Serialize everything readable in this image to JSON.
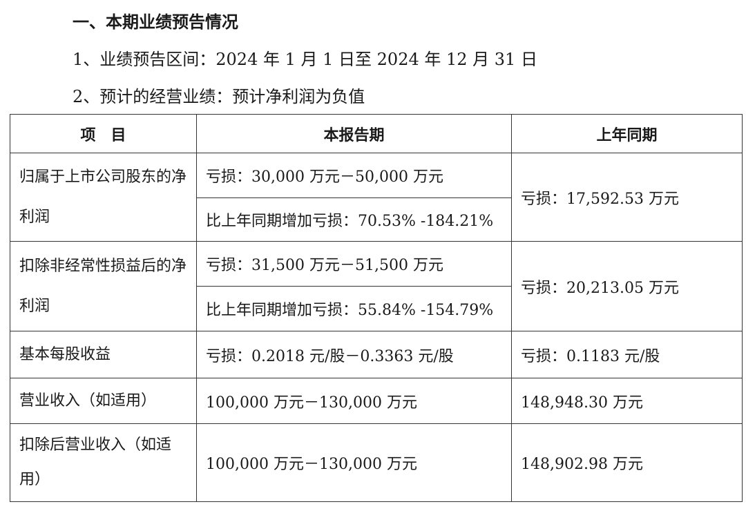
{
  "section_title": "一、本期业绩预告情况",
  "period_line": "1、业绩预告区间：2024 年 1 月 1 日至 2024 年 12 月 31 日",
  "forecast_line": "2、预计的经营业绩：预计净利润为负值",
  "table": {
    "headers": [
      "项　目",
      "本报告期",
      "上年同期"
    ],
    "rows": [
      {
        "item": "归属于上市公司股东的净利润",
        "current": "亏损：30,000 万元－50,000 万元",
        "current_change": "比上年同期增加亏损：70.53% -184.21%",
        "prior": "亏损：17,592.53 万元"
      },
      {
        "item": "扣除非经常性损益后的净利润",
        "current": "亏损：31,500 万元－51,500 万元",
        "current_change": "比上年同期增加亏损：55.84% -154.79%",
        "prior": "亏损：20,213.05 万元"
      },
      {
        "item": "基本每股收益",
        "current": "亏损：0.2018 元/股－0.3363 元/股",
        "prior": "亏损：0.1183 元/股"
      },
      {
        "item": "营业收入（如适用）",
        "current": "100,000 万元－130,000 万元",
        "prior": "148,948.30 万元"
      },
      {
        "item": "扣除后营业收入（如适用）",
        "current": "100,000 万元－130,000 万元",
        "prior": "148,902.98 万元"
      }
    ]
  }
}
